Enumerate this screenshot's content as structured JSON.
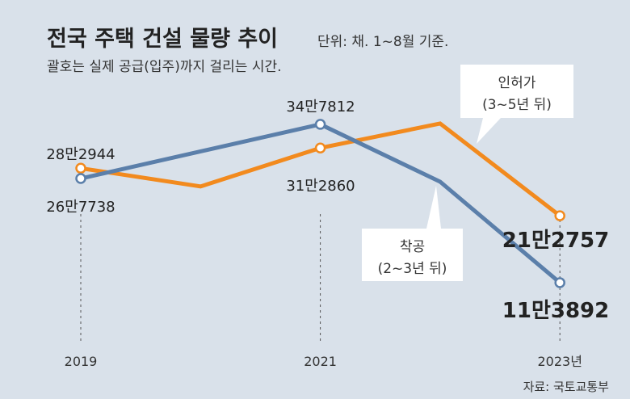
{
  "chart_data": {
    "type": "line",
    "title": "전국 주택 건설 물량 추이",
    "unit_note": "단위: 채. 1~8월 기준.",
    "subtitle": "괄호는 실제 공급(입주)까지 걸리는 시간.",
    "source": "자료: 국토교통부",
    "x": [
      2019,
      2020,
      2021,
      2022,
      2023
    ],
    "tick_labels": [
      "2019",
      "2021",
      "2023년"
    ],
    "tick_years": [
      2019,
      2021,
      2023
    ],
    "ylim": [
      0,
      380000
    ],
    "grid": false,
    "series": [
      {
        "name": "인허가",
        "callout": [
          "인허가",
          "(3~5년 뒤)"
        ],
        "color": "#f28a1e",
        "values": [
          282944,
          256000,
          312860,
          349000,
          212757
        ],
        "labels": {
          "0": "28만2944",
          "2": "31만2860",
          "4": "21만2757"
        }
      },
      {
        "name": "착공",
        "callout": [
          "착공",
          "(2~3년 뒤)"
        ],
        "color": "#5b7faa",
        "values": [
          267738,
          null,
          347812,
          263000,
          113892
        ],
        "labels": {
          "0": "26만7738",
          "2": "34만7812",
          "4": "11만3892"
        }
      }
    ]
  }
}
